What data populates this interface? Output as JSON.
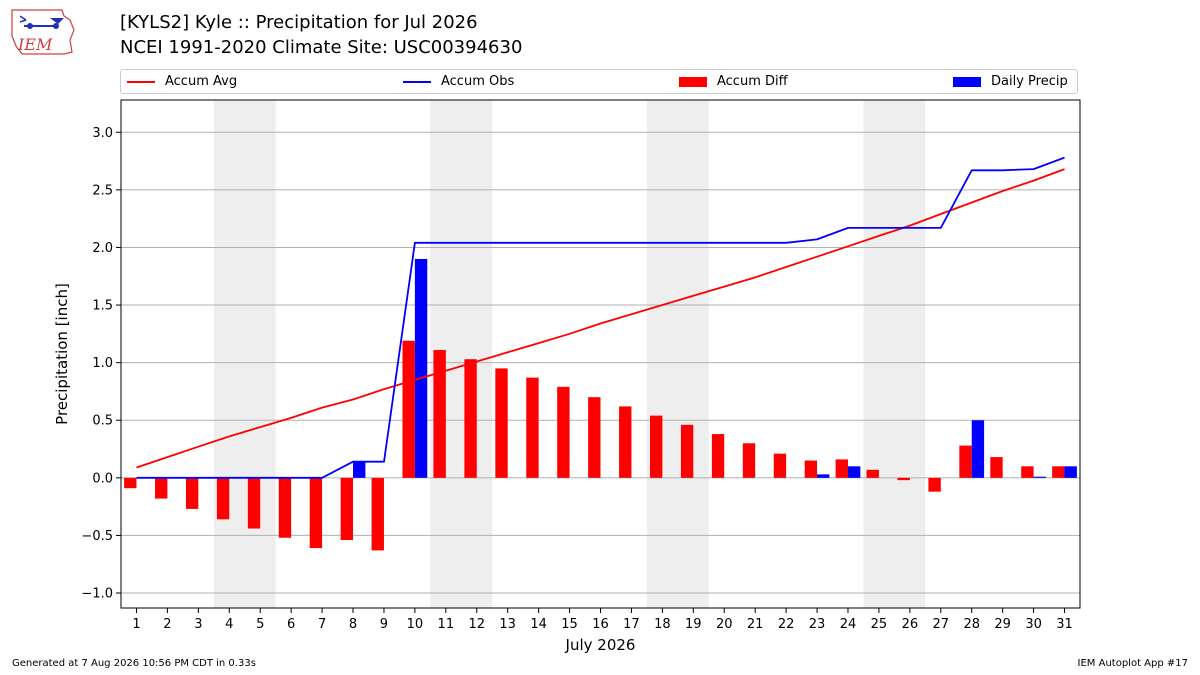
{
  "header": {
    "logo_text": "IEM",
    "title_line1": "[KYLS2] Kyle :: Precipitation for Jul 2026",
    "title_line2": "NCEI 1991-2020 Climate Site: USC00394630"
  },
  "footer": {
    "left": "Generated at 7 Aug 2026 10:56 PM CDT in 0.33s",
    "right": "IEM Autoplot App #17"
  },
  "colors": {
    "avg": "#ff0000",
    "obs": "#0000ff",
    "diff": "#ff0000",
    "daily": "#0000ff",
    "weekend_band": "#eeeeee",
    "grid": "#b0b0b0"
  },
  "chart_data": {
    "type": "bar",
    "xlabel": "July 2026",
    "ylabel": "Precipitation [inch]",
    "xlim": [
      0.5,
      31.5
    ],
    "ylim": [
      -1.13,
      3.28
    ],
    "yticks": [
      -1.0,
      -0.5,
      0.0,
      0.5,
      1.0,
      1.5,
      2.0,
      2.5,
      3.0
    ],
    "ytick_labels": [
      "−1.0",
      "−0.5",
      "0.0",
      "0.5",
      "1.0",
      "1.5",
      "2.0",
      "2.5",
      "3.0"
    ],
    "grid": "horizontal",
    "legend_placement": "top",
    "weekend_bands": [
      [
        3.5,
        5.5
      ],
      [
        10.5,
        12.5
      ],
      [
        17.5,
        19.5
      ],
      [
        24.5,
        26.5
      ]
    ],
    "days": [
      1,
      2,
      3,
      4,
      5,
      6,
      7,
      8,
      9,
      10,
      11,
      12,
      13,
      14,
      15,
      16,
      17,
      18,
      19,
      20,
      21,
      22,
      23,
      24,
      25,
      26,
      27,
      28,
      29,
      30,
      31
    ],
    "series": [
      {
        "name": "Accum Avg",
        "kind": "line",
        "values": [
          0.09,
          0.18,
          0.27,
          0.36,
          0.44,
          0.52,
          0.61,
          0.68,
          0.77,
          0.85,
          0.93,
          1.01,
          1.09,
          1.17,
          1.25,
          1.34,
          1.42,
          1.5,
          1.58,
          1.66,
          1.74,
          1.83,
          1.92,
          2.01,
          2.1,
          2.19,
          2.29,
          2.39,
          2.49,
          2.58,
          2.68
        ]
      },
      {
        "name": "Accum Obs",
        "kind": "line",
        "values": [
          0.0,
          0.0,
          0.0,
          0.0,
          0.0,
          0.0,
          0.0,
          0.14,
          0.14,
          2.04,
          2.04,
          2.04,
          2.04,
          2.04,
          2.04,
          2.04,
          2.04,
          2.04,
          2.04,
          2.04,
          2.04,
          2.04,
          2.07,
          2.17,
          2.17,
          2.17,
          2.17,
          2.67,
          2.67,
          2.68,
          2.78
        ]
      },
      {
        "name": "Accum Diff",
        "kind": "bar",
        "values": [
          -0.09,
          -0.18,
          -0.27,
          -0.36,
          -0.44,
          -0.52,
          -0.61,
          -0.54,
          -0.63,
          1.19,
          1.11,
          1.03,
          0.95,
          0.87,
          0.79,
          0.7,
          0.62,
          0.54,
          0.46,
          0.38,
          0.3,
          0.21,
          0.15,
          0.16,
          0.07,
          -0.02,
          -0.12,
          0.28,
          0.18,
          0.1,
          0.1
        ]
      },
      {
        "name": "Daily Precip",
        "kind": "bar",
        "values": [
          0,
          0,
          0,
          0,
          0,
          0,
          0,
          0.14,
          0,
          1.9,
          0,
          0,
          0,
          0,
          0,
          0,
          0,
          0,
          0,
          0,
          0,
          0,
          0.03,
          0.1,
          0,
          0,
          0,
          0.5,
          0,
          0.01,
          0.1
        ]
      }
    ]
  }
}
